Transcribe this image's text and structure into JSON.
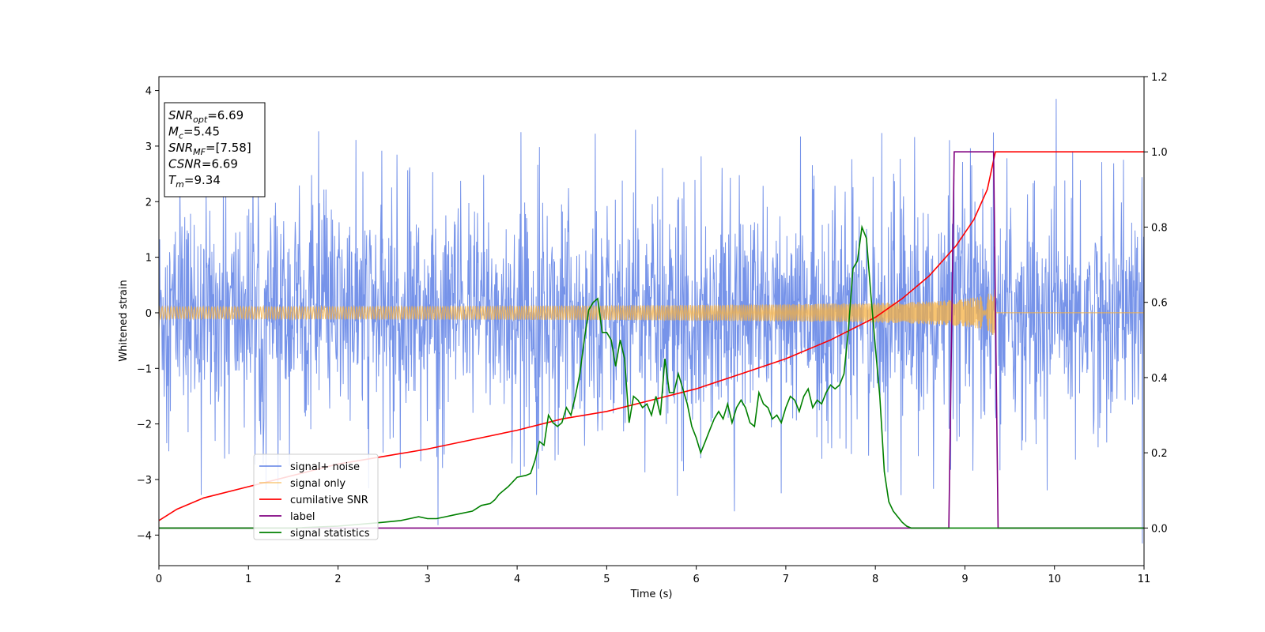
{
  "chart_data": {
    "type": "line",
    "xlabel": "Time (s)",
    "ylabel": "Whitened strain",
    "xlim": [
      0,
      11
    ],
    "ylim": [
      -4.55,
      4.25
    ],
    "y2lim": [
      -0.1,
      1.2
    ],
    "xticks": [
      "0",
      "1",
      "2",
      "3",
      "4",
      "5",
      "6",
      "7",
      "8",
      "9",
      "10",
      "11"
    ],
    "yticks": [
      "−4",
      "−3",
      "−2",
      "−1",
      "0",
      "1",
      "2",
      "3",
      "4"
    ],
    "y2ticks": [
      "0.0",
      "0.2",
      "0.4",
      "0.6",
      "0.8",
      "1.0",
      "1.2"
    ],
    "grid": false,
    "legend_position": "lower-left",
    "info_box": {
      "lines": [
        {
          "sym": "SNR",
          "sub": "opt",
          "val": "=6.69"
        },
        {
          "sym": "M",
          "sub": "c",
          "val": "=5.45"
        },
        {
          "sym": "SNR",
          "sub": "MF",
          "val": "=[7.58]"
        },
        {
          "sym": "CSNR",
          "sub": "",
          "val": "=6.69"
        },
        {
          "sym": "T",
          "sub": "m",
          "val": "=9.34"
        }
      ]
    },
    "series": [
      {
        "name": "signal+ noise",
        "color": "#4169e1",
        "axis": "left",
        "kind": "noise",
        "noise_band": [
          -2.0,
          2.0
        ],
        "noise_extremes": [
          -4.15,
          3.85
        ]
      },
      {
        "name": "signal only",
        "color": "#f5b041",
        "axis": "left",
        "kind": "chirp",
        "t_merge": 9.34,
        "amplitude_end": 0.45,
        "amplitude_start": 0.02
      },
      {
        "name": "cumilative SNR",
        "color": "#ff0000",
        "axis": "right",
        "x": [
          0,
          0.2,
          0.5,
          1,
          1.5,
          2,
          2.5,
          3,
          3.5,
          4,
          4.5,
          5,
          5.5,
          6,
          6.5,
          7,
          7.5,
          8,
          8.3,
          8.6,
          8.9,
          9.1,
          9.25,
          9.34,
          11
        ],
        "y": [
          0.02,
          0.05,
          0.08,
          0.11,
          0.14,
          0.17,
          0.19,
          0.21,
          0.235,
          0.26,
          0.29,
          0.31,
          0.34,
          0.37,
          0.41,
          0.45,
          0.5,
          0.56,
          0.61,
          0.67,
          0.75,
          0.82,
          0.9,
          1.0,
          1.0
        ]
      },
      {
        "name": "label",
        "color": "#800080",
        "axis": "right",
        "x": [
          0,
          8.82,
          8.88,
          9.32,
          9.37,
          11
        ],
        "y": [
          0.0,
          0.0,
          1.0,
          1.0,
          0.0,
          0.0
        ]
      },
      {
        "name": "signal statistics",
        "color": "#008000",
        "axis": "right",
        "x": [
          0,
          0.5,
          1,
          1.5,
          2,
          2.5,
          2.7,
          2.8,
          2.9,
          3.0,
          3.1,
          3.2,
          3.3,
          3.5,
          3.6,
          3.7,
          3.75,
          3.8,
          3.9,
          4.0,
          4.1,
          4.15,
          4.2,
          4.25,
          4.3,
          4.35,
          4.4,
          4.45,
          4.5,
          4.55,
          4.6,
          4.65,
          4.7,
          4.75,
          4.8,
          4.85,
          4.9,
          4.95,
          5.0,
          5.05,
          5.1,
          5.15,
          5.2,
          5.25,
          5.3,
          5.35,
          5.4,
          5.45,
          5.5,
          5.55,
          5.6,
          5.65,
          5.7,
          5.75,
          5.8,
          5.85,
          5.9,
          5.95,
          6.0,
          6.05,
          6.1,
          6.15,
          6.2,
          6.25,
          6.3,
          6.35,
          6.4,
          6.45,
          6.5,
          6.55,
          6.6,
          6.65,
          6.7,
          6.75,
          6.8,
          6.85,
          6.9,
          6.95,
          7.0,
          7.05,
          7.1,
          7.15,
          7.2,
          7.25,
          7.3,
          7.35,
          7.4,
          7.45,
          7.5,
          7.55,
          7.6,
          7.65,
          7.7,
          7.75,
          7.8,
          7.85,
          7.9,
          7.95,
          8.0,
          8.05,
          8.1,
          8.15,
          8.2,
          8.25,
          8.3,
          8.35,
          8.4,
          8.45,
          8.5,
          8.55,
          8.6,
          8.65,
          8.7,
          8.75,
          8.8,
          8.85,
          8.9,
          8.95,
          9.0,
          9.1,
          9.2,
          9.3,
          9.4,
          9.6,
          10,
          10.5,
          11
        ],
        "y": [
          0.0,
          0.0,
          0.0,
          0.0,
          0.005,
          0.015,
          0.02,
          0.025,
          0.03,
          0.025,
          0.025,
          0.03,
          0.035,
          0.045,
          0.06,
          0.065,
          0.075,
          0.09,
          0.11,
          0.135,
          0.14,
          0.145,
          0.18,
          0.23,
          0.22,
          0.3,
          0.28,
          0.27,
          0.28,
          0.32,
          0.3,
          0.35,
          0.41,
          0.5,
          0.58,
          0.6,
          0.61,
          0.52,
          0.52,
          0.5,
          0.43,
          0.5,
          0.45,
          0.28,
          0.35,
          0.34,
          0.32,
          0.33,
          0.3,
          0.35,
          0.3,
          0.45,
          0.36,
          0.36,
          0.41,
          0.37,
          0.33,
          0.27,
          0.24,
          0.2,
          0.23,
          0.26,
          0.29,
          0.31,
          0.29,
          0.33,
          0.28,
          0.32,
          0.34,
          0.32,
          0.28,
          0.27,
          0.36,
          0.33,
          0.32,
          0.29,
          0.3,
          0.28,
          0.32,
          0.35,
          0.34,
          0.31,
          0.35,
          0.37,
          0.32,
          0.34,
          0.33,
          0.36,
          0.38,
          0.37,
          0.38,
          0.41,
          0.53,
          0.69,
          0.71,
          0.8,
          0.77,
          0.62,
          0.48,
          0.35,
          0.15,
          0.07,
          0.045,
          0.03,
          0.015,
          0.005,
          0.0,
          0.0,
          0.0,
          0.0,
          0.0,
          0.0,
          0.0,
          0.0,
          0.0,
          0.0,
          0.0,
          0.0,
          0.0,
          0.0,
          0.0,
          0.0,
          0.0,
          0.0,
          0.0,
          0.0,
          0.0
        ]
      }
    ]
  }
}
